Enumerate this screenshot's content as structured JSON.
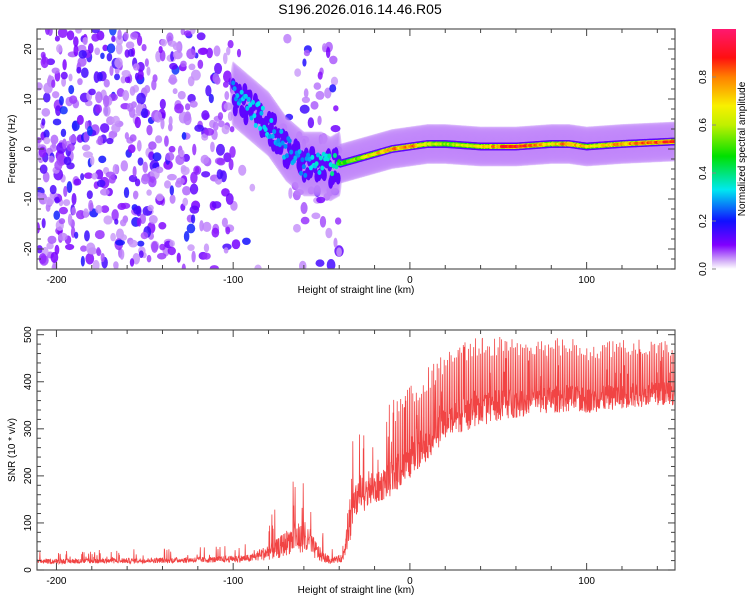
{
  "title": "S196.2026.016.14.46.R05",
  "chart_data": [
    {
      "type": "heatmap",
      "name": "spectrogram",
      "xlabel": "Height of straight line (km)",
      "ylabel": "Frequency (Hz)",
      "xlim": [
        -211,
        150
      ],
      "ylim": [
        -24,
        24
      ],
      "xticks": [
        -200,
        -100,
        0,
        100
      ],
      "xtick_labels": [
        "-200",
        "-100",
        "0",
        "100"
      ],
      "yticks": [
        -20,
        -10,
        0,
        10,
        20
      ],
      "ytick_labels": [
        "-20",
        "-10",
        "0",
        "10",
        "20"
      ],
      "colorbar": {
        "label": "Normalized spectral amplitude",
        "range": [
          0,
          1
        ],
        "ticks": [
          0.0,
          0.2,
          0.4,
          0.6,
          0.8
        ],
        "tick_labels": [
          "0.0",
          "0.2",
          "0.4",
          "0.6",
          "0.8"
        ],
        "colors": [
          "#ffffff",
          "#d8b8f8",
          "#8000ff",
          "#0000ff",
          "#00e0ff",
          "#00e000",
          "#f0f000",
          "#ff2000",
          "#ff1880"
        ]
      },
      "ridge": {
        "description": "Dominant Doppler frequency ridge vs height",
        "x": [
          -100,
          -90,
          -80,
          -70,
          -60,
          -50,
          -45,
          -40,
          -30,
          -20,
          -10,
          0,
          10,
          20,
          40,
          60,
          80,
          90,
          100,
          120,
          150
        ],
        "y": [
          11,
          8,
          5,
          0,
          -3,
          -3,
          -4,
          -3,
          -2,
          -1,
          0,
          0.5,
          1,
          1,
          0.5,
          0.5,
          1,
          1,
          0.5,
          1,
          1.5
        ],
        "amplitude": [
          0.25,
          0.3,
          0.3,
          0.25,
          0.25,
          0.35,
          0.4,
          0.5,
          0.6,
          0.75,
          0.8,
          0.85,
          0.7,
          0.6,
          0.7,
          0.95,
          0.7,
          0.85,
          0.7,
          0.8,
          0.9
        ]
      },
      "noise_region": {
        "x_range": [
          -211,
          -40
        ],
        "amplitude": [
          0.05,
          0.25
        ]
      }
    },
    {
      "type": "line",
      "name": "snr",
      "xlabel": "Height of straight line (km)",
      "ylabel": "SNR (10 * v/v)",
      "xlim": [
        -211,
        150
      ],
      "ylim": [
        0,
        510
      ],
      "xticks": [
        -200,
        -100,
        0,
        100
      ],
      "xtick_labels": [
        "-200",
        "-100",
        "0",
        "100"
      ],
      "yticks": [
        0,
        100,
        200,
        300,
        400,
        500
      ],
      "ytick_labels": [
        "0",
        "100",
        "200",
        "300",
        "400",
        "500"
      ],
      "color": "#f03030",
      "envelope": {
        "x": [
          -211,
          -150,
          -110,
          -90,
          -75,
          -65,
          -58,
          -50,
          -45,
          -38,
          -34,
          -30,
          -20,
          -10,
          0,
          10,
          20,
          30,
          50,
          70,
          90,
          100,
          120,
          150
        ],
        "base": [
          18,
          20,
          22,
          25,
          45,
          70,
          60,
          30,
          20,
          25,
          110,
          150,
          170,
          195,
          230,
          270,
          310,
          330,
          350,
          360,
          365,
          360,
          370,
          375
        ],
        "peak": [
          40,
          45,
          50,
          60,
          140,
          220,
          190,
          90,
          50,
          60,
          350,
          300,
          310,
          360,
          390,
          430,
          460,
          490,
          500,
          490,
          495,
          480,
          490,
          490
        ]
      }
    }
  ]
}
